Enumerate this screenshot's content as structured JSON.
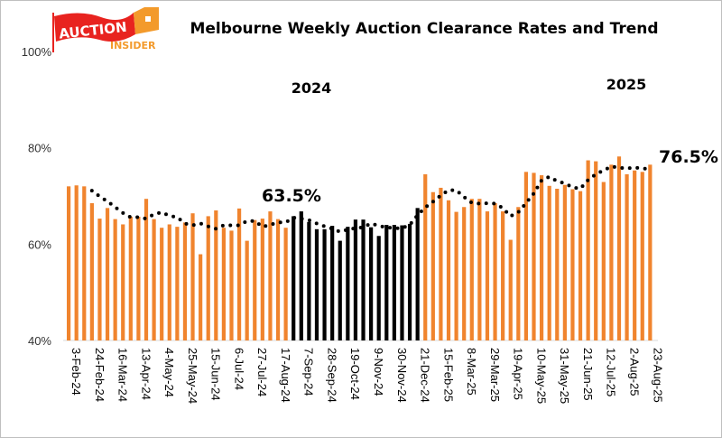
{
  "logo": {
    "text_main": "AUCTION",
    "text_sub": "INSIDER",
    "colors": {
      "flag": "#E8231F",
      "house": "#F39A2B"
    }
  },
  "chart_data": {
    "type": "bar",
    "title": "Melbourne Weekly Auction Clearance Rates and Trend",
    "xlabel": "",
    "ylabel": "",
    "ylim": [
      40,
      100
    ],
    "yticks": [
      "40%",
      "60%",
      "80%",
      "100%"
    ],
    "ytick_values": [
      40,
      60,
      80,
      100
    ],
    "grid": false,
    "legend": "none",
    "tick_labels": [
      "3-Feb-24",
      "24-Feb-24",
      "16-Mar-24",
      "13-Apr-24",
      "4-May-24",
      "25-May-24",
      "15-Jun-24",
      "6-Jul-24",
      "27-Jul-24",
      "17-Aug-24",
      "7-Sep-24",
      "28-Sep-24",
      "19-Oct-24",
      "9-Nov-24",
      "30-Nov-24",
      "21-Dec-24",
      "15-Feb-25",
      "8-Mar-25",
      "29-Mar-25",
      "19-Apr-25",
      "10-May-25",
      "31-May-25",
      "21-Jun-25",
      "12-Jul-25",
      "2-Aug-25",
      "23-Aug-25"
    ],
    "tick_every": 3,
    "series": [
      {
        "type": "bar",
        "values": [
          72.0,
          72.2,
          72.0,
          68.5,
          65.3,
          67.5,
          65.2,
          64.1,
          65.7,
          65.7,
          69.4,
          65.2,
          63.4,
          64.1,
          63.6,
          64.5,
          66.4,
          57.9,
          65.8,
          67.0,
          63.4,
          62.8,
          67.4,
          60.7,
          65.0,
          65.3,
          66.8,
          65.2,
          63.4,
          65.8,
          66.8,
          64.6,
          63.1,
          63.1,
          63.8,
          60.7,
          63.6,
          65.1,
          65.1,
          63.5,
          61.7,
          64.0,
          64.0,
          63.9,
          64.2,
          67.5,
          74.5,
          70.8,
          71.7,
          69.1,
          66.7,
          67.7,
          69.4,
          69.4,
          66.8,
          68.5,
          66.8,
          60.9,
          67.7,
          75.0,
          74.8,
          74.3,
          72.1,
          71.5,
          72.3,
          71.4,
          71.0,
          77.4,
          77.2,
          72.9,
          76.5,
          78.2,
          74.5,
          75.3,
          75.0,
          76.5
        ],
        "highlight_range": [
          29,
          45
        ],
        "color": "#F0842E",
        "highlight_color": "#000000"
      },
      {
        "type": "line",
        "style": "dotted",
        "start_index": 3,
        "values": [
          71.1,
          69.9,
          68.9,
          67.7,
          66.5,
          65.6,
          65.6,
          65.3,
          66.2,
          66.6,
          65.9,
          65.6,
          64.3,
          63.9,
          64.3,
          63.7,
          63.2,
          63.9,
          63.9,
          63.9,
          64.8,
          64.8,
          63.6,
          64.0,
          64.5,
          64.5,
          65.5,
          65.3,
          65.0,
          64.3,
          63.7,
          63.2,
          62.6,
          63.0,
          63.3,
          63.5,
          64.3,
          63.8,
          63.5,
          63.3,
          63.3,
          64.0,
          66.0,
          67.6,
          68.8,
          70.1,
          71.2,
          71.2,
          69.8,
          68.6,
          68.4,
          68.5,
          68.4,
          67.5,
          65.8,
          66.6,
          68.5,
          70.5,
          73.2,
          74.0,
          73.1,
          72.6,
          71.8,
          71.5,
          73.3,
          74.5,
          75.3,
          76.1,
          75.9,
          75.7,
          75.9,
          75.7,
          75.6
        ],
        "color": "#000000"
      }
    ],
    "annotations": {
      "year_2024": "2024",
      "year_2025": "2025",
      "low_label": "63.5%",
      "latest_label": "76.5%"
    }
  }
}
